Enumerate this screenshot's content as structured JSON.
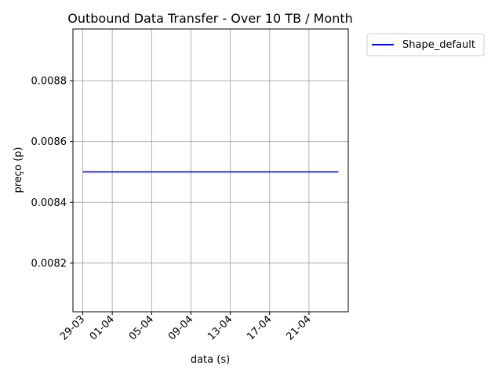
{
  "chart_data": {
    "type": "line",
    "title": "Outbound Data Transfer - Over 10 TB / Month",
    "xlabel": "data (s)",
    "ylabel": "preço (p)",
    "x_tick_labels": [
      "29-03",
      "01-04",
      "05-04",
      "09-04",
      "13-04",
      "17-04",
      "21-04"
    ],
    "x_ticks": [
      "2023-03-29",
      "2023-04-01",
      "2023-04-05",
      "2023-04-09",
      "2023-04-13",
      "2023-04-17",
      "2023-04-21"
    ],
    "y_ticks": [
      0.0082,
      0.0084,
      0.0086,
      0.0088
    ],
    "y_tick_labels": [
      "0.0082",
      "0.0084",
      "0.0086",
      "0.0088"
    ],
    "xlim": [
      "2023-03-28 00:00",
      "2023-04-25 00:00"
    ],
    "ylim": [
      0.00804,
      0.00897
    ],
    "grid": true,
    "legend_placement": "outside top-right",
    "series": [
      {
        "name": "Shape_default",
        "color": "#0000ff",
        "x": [
          "2023-03-29",
          "2023-04-24"
        ],
        "values": [
          0.0085,
          0.0085
        ]
      }
    ]
  },
  "colors": {
    "grid": "#b0b0b0",
    "axes": "#000000",
    "line": "#0000ff"
  }
}
